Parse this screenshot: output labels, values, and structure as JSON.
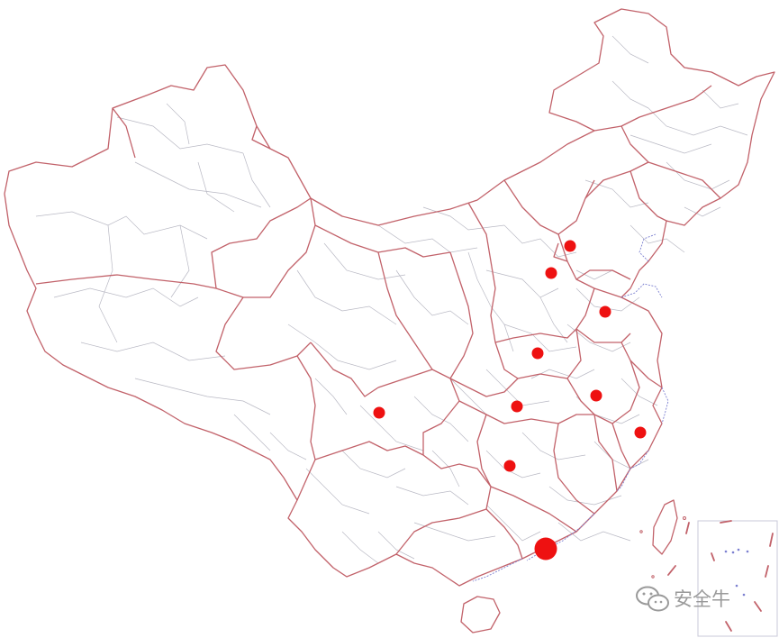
{
  "map": {
    "colors": {
      "province_border": "#c2626a",
      "prefecture_border": "#b9b9c4",
      "coastline": "#7b7fd0",
      "marker": "#ee1111"
    },
    "markers": [
      {
        "id": "marker-1",
        "size": "small"
      },
      {
        "id": "marker-2",
        "size": "small"
      },
      {
        "id": "marker-3",
        "size": "small"
      },
      {
        "id": "marker-4",
        "size": "small"
      },
      {
        "id": "marker-5",
        "size": "small"
      },
      {
        "id": "marker-6",
        "size": "small"
      },
      {
        "id": "marker-7",
        "size": "small"
      },
      {
        "id": "marker-8",
        "size": "small"
      },
      {
        "id": "marker-9",
        "size": "small"
      },
      {
        "id": "marker-10",
        "size": "small"
      },
      {
        "id": "marker-11",
        "size": "large"
      }
    ]
  },
  "watermark": {
    "text": "安全牛",
    "icon": "wechat-icon"
  }
}
